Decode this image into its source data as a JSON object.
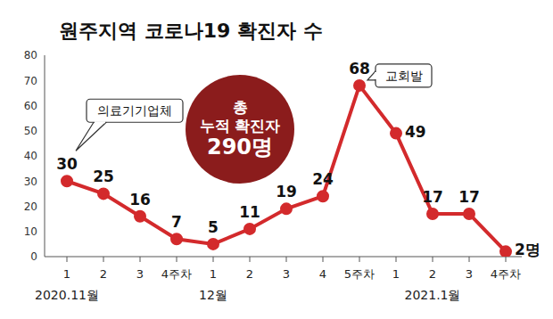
{
  "chart_data": {
    "type": "line",
    "title": "원주지역 코로나19 확진자 수",
    "categories": [
      "1",
      "2",
      "3",
      "4주차",
      "1",
      "2",
      "3",
      "4",
      "5주차",
      "1",
      "2",
      "3",
      "4주차"
    ],
    "x_group_labels": [
      "2020.11월",
      null,
      null,
      null,
      "12월",
      null,
      null,
      null,
      null,
      null,
      "2021.1월",
      null,
      null
    ],
    "values": [
      30,
      25,
      16,
      7,
      5,
      11,
      19,
      24,
      68,
      49,
      17,
      17,
      2
    ],
    "value_labels": [
      "30",
      "25",
      "16",
      "7",
      "5",
      "11",
      "19",
      "24",
      "68",
      "49",
      "17",
      "17",
      "2명"
    ],
    "color": "#d32a2c",
    "marker": "circle",
    "ylim": [
      0,
      80
    ],
    "yticks": [
      0,
      10,
      20,
      30,
      40,
      50,
      60,
      70,
      80
    ],
    "grid": false,
    "data_labels": true,
    "annotations": [
      {
        "text": "의료기기업체",
        "point": 0
      },
      {
        "text": "교회발",
        "point": 8
      }
    ],
    "badge": {
      "lines": [
        "총",
        "누적 확진자",
        "290명"
      ],
      "color": "#8b1c1c"
    }
  }
}
